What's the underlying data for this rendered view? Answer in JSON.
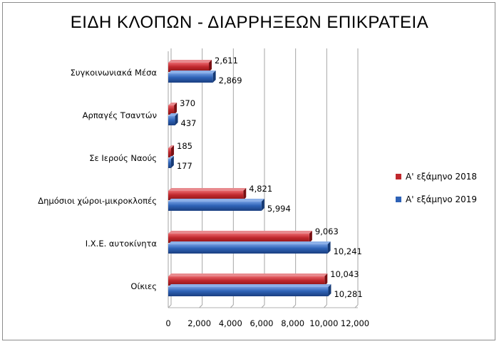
{
  "chart_data": {
    "type": "bar",
    "orientation": "horizontal",
    "title": "ΕΙΔΗ ΚΛΟΠΩΝ - ΔΙΑΡΡΗΞΕΩΝ  ΕΠΙΚΡΑΤΕΙΑ",
    "categories": [
      "Συγκοινωνιακά Μέσα",
      "Αρπαγές Τσαντών",
      "Σε Ιερούς Ναούς",
      "Δημόσιοι χώροι-μικροκλοπές",
      "Ι.Χ.Ε. αυτοκίνητα",
      "Οίκιες"
    ],
    "series": [
      {
        "name": "Α' εξάμηνο 2018",
        "color": "#c0282d",
        "values": [
          2611,
          370,
          185,
          4821,
          9063,
          10043
        ],
        "labels": [
          "2,611",
          "370",
          "185",
          "4,821",
          "9,063",
          "10,043"
        ]
      },
      {
        "name": "Α' εξάμηνο 2019",
        "color": "#2e62b6",
        "values": [
          2869,
          437,
          177,
          5994,
          10241,
          10281
        ],
        "labels": [
          "2,869",
          "437",
          "177",
          "5,994",
          "10,241",
          "10,281"
        ]
      }
    ],
    "xlim": [
      0,
      12000
    ],
    "xticks": [
      0,
      2000,
      4000,
      6000,
      8000,
      10000,
      12000
    ],
    "xtick_labels": [
      "0",
      "2,000",
      "4,000",
      "6,000",
      "8,000",
      "10,000",
      "12,000"
    ],
    "grid": true,
    "legend_position": "right"
  }
}
